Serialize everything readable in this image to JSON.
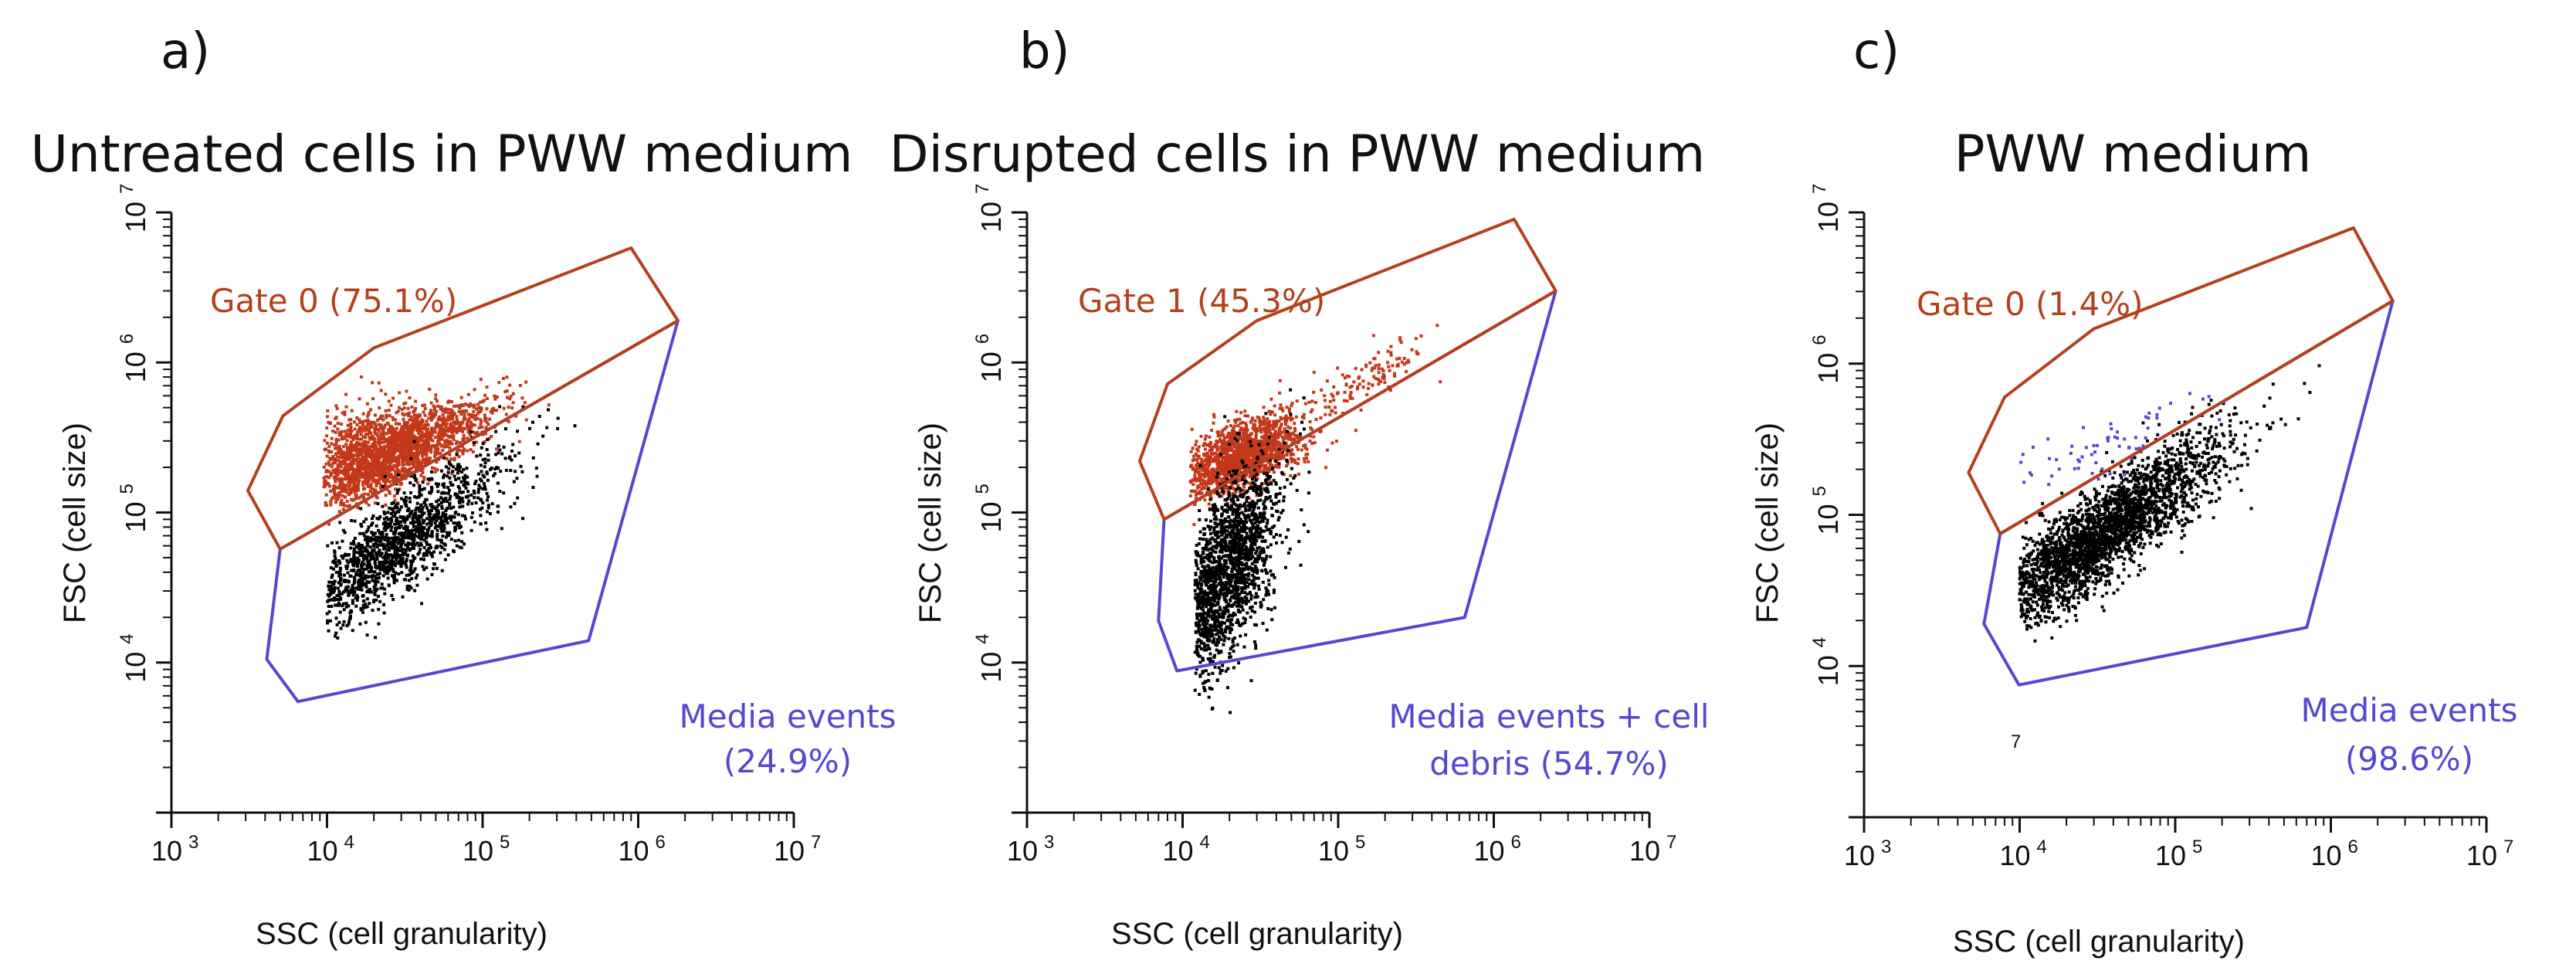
{
  "colors": {
    "gate": "#b5401c",
    "gate_points": "#c4381a",
    "media": "#5548d0",
    "events": "#000000"
  },
  "chart_data": [
    {
      "type": "scatter",
      "panel": "a)",
      "title": "Untreated cells in PWW medium",
      "xlabel": "SSC (cell granularity)",
      "ylabel": "FSC (cell size)",
      "xscale": "log",
      "yscale": "log",
      "xlim": [
        1000,
        10000000
      ],
      "ylim": [
        1000,
        10000000
      ],
      "x_ticks": [
        {
          "base": "10",
          "exp": "3"
        },
        {
          "base": "10",
          "exp": "4"
        },
        {
          "base": "10",
          "exp": "5"
        },
        {
          "base": "10",
          "exp": "6"
        },
        {
          "base": "10",
          "exp": "7"
        }
      ],
      "y_ticks": [
        {
          "base": "10",
          "exp": "4"
        },
        {
          "base": "10",
          "exp": "5"
        },
        {
          "base": "10",
          "exp": "6"
        },
        {
          "base": "10",
          "exp": "7"
        }
      ],
      "gate": {
        "label": "Gate 0 (75.1%)",
        "percent": 75.1,
        "polygon": [
          [
            1800000,
            1900000
          ],
          [
            900000,
            5800000
          ],
          [
            20000,
            1250000
          ],
          [
            5200,
            440000
          ],
          [
            3100,
            140000
          ],
          [
            5000,
            57000
          ]
        ]
      },
      "media": {
        "label_lines": [
          "Media events",
          "(24.9%)"
        ],
        "percent": 24.9,
        "polygon": [
          [
            1800000,
            1900000
          ],
          [
            5000,
            57000
          ],
          [
            4100,
            10500
          ],
          [
            6500,
            5500
          ],
          [
            480000,
            14000
          ]
        ]
      },
      "clusters": [
        {
          "color": "gate_points",
          "n": 1600,
          "log_center": [
            4.45,
            5.4
          ],
          "sd_major": 0.33,
          "sd_minor": 0.1,
          "angle_deg": 26,
          "log_xmin": 3.98,
          "log_xmax": 5.6
        },
        {
          "color": "gate_points",
          "n": 500,
          "log_center": [
            4.3,
            5.45
          ],
          "sd_major": 0.2,
          "sd_minor": 0.14,
          "angle_deg": 20,
          "log_xmin": 3.98,
          "log_xmax": 5.6
        },
        {
          "color": "events",
          "n": 1400,
          "log_center": [
            4.4,
            4.75
          ],
          "sd_major": 0.45,
          "sd_minor": 0.13,
          "angle_deg": 40,
          "log_xmin": 4.0,
          "log_xmax": 6.1
        }
      ]
    },
    {
      "type": "scatter",
      "panel": "b)",
      "title": "Disrupted cells in PWW medium",
      "xlabel": "SSC (cell granularity)",
      "ylabel": "FSC (cell size)",
      "xscale": "log",
      "yscale": "log",
      "xlim": [
        1000,
        10000000
      ],
      "ylim": [
        1000,
        10000000
      ],
      "x_ticks": [
        {
          "base": "10",
          "exp": "3"
        },
        {
          "base": "10",
          "exp": "4"
        },
        {
          "base": "10",
          "exp": "5"
        },
        {
          "base": "10",
          "exp": "6"
        },
        {
          "base": "10",
          "exp": "7"
        }
      ],
      "y_ticks": [
        {
          "base": "10",
          "exp": "4"
        },
        {
          "base": "10",
          "exp": "5"
        },
        {
          "base": "10",
          "exp": "6"
        },
        {
          "base": "10",
          "exp": "7"
        }
      ],
      "gate": {
        "label": "Gate 1 (45.3%)",
        "percent": 45.3,
        "polygon": [
          [
            2500000,
            3000000
          ],
          [
            1350000,
            9000000
          ],
          [
            30000,
            1900000
          ],
          [
            8000,
            720000
          ],
          [
            5300,
            220000
          ],
          [
            7600,
            90000
          ]
        ]
      },
      "media": {
        "label_lines": [
          "Media events + cell",
          "debris (54.7%)"
        ],
        "percent": 54.7,
        "polygon": [
          [
            2500000,
            3000000
          ],
          [
            7600,
            90000
          ],
          [
            7000,
            19000
          ],
          [
            9200,
            8800
          ],
          [
            650000,
            20000
          ]
        ]
      },
      "clusters": [
        {
          "color": "gate_points",
          "n": 1400,
          "log_center": [
            4.38,
            5.38
          ],
          "sd_major": 0.2,
          "sd_minor": 0.1,
          "angle_deg": 28,
          "log_xmin": 4.05,
          "log_xmax": 6.4
        },
        {
          "color": "gate_points",
          "n": 120,
          "log_center": [
            5.2,
            5.9
          ],
          "sd_major": 0.25,
          "sd_minor": 0.08,
          "angle_deg": 35,
          "log_xmin": 4.05,
          "log_xmax": 6.4
        },
        {
          "color": "events",
          "n": 1700,
          "log_center": [
            4.28,
            4.62
          ],
          "sd_major": 0.38,
          "sd_minor": 0.13,
          "angle_deg": 72,
          "log_xmin": 4.08,
          "log_xmax": 6.2
        }
      ]
    },
    {
      "type": "scatter",
      "panel": "c)",
      "title": "PWW medium",
      "xlabel": "SSC (cell granularity)",
      "ylabel": "FSC (cell size)",
      "xscale": "log",
      "yscale": "log",
      "xlim": [
        1000,
        10000000
      ],
      "ylim": [
        1000,
        10000000
      ],
      "x_ticks": [
        {
          "base": "10",
          "exp": "3"
        },
        {
          "base": "10",
          "exp": "4"
        },
        {
          "base": "10",
          "exp": "5"
        },
        {
          "base": "10",
          "exp": "6"
        },
        {
          "base": "10",
          "exp": "7"
        }
      ],
      "y_ticks": [
        {
          "base": "10",
          "exp": "4"
        },
        {
          "base": "10",
          "exp": "5"
        },
        {
          "base": "10",
          "exp": "6"
        },
        {
          "base": "10",
          "exp": "7"
        }
      ],
      "gate": {
        "label": "Gate 0 (1.4%)",
        "percent": 1.4,
        "polygon": [
          [
            2500000,
            2600000
          ],
          [
            1400000,
            7900000
          ],
          [
            30000,
            1700000
          ],
          [
            8000,
            600000
          ],
          [
            4700,
            190000
          ],
          [
            7500,
            75000
          ]
        ]
      },
      "media": {
        "label_lines": [
          "Media events",
          "(98.6%)"
        ],
        "percent": 98.6,
        "polygon": [
          [
            2500000,
            2600000
          ],
          [
            7500,
            75000
          ],
          [
            5900,
            19000
          ],
          [
            9900,
            7500
          ],
          [
            700000,
            18000
          ]
        ]
      },
      "stray_label": "7",
      "clusters": [
        {
          "color": "events",
          "n": 2600,
          "log_center": [
            4.5,
            4.85
          ],
          "sd_major": 0.5,
          "sd_minor": 0.13,
          "angle_deg": 38,
          "log_xmin": 4.0,
          "log_xmax": 6.15
        },
        {
          "color": "media",
          "n": 60,
          "log_center": [
            4.55,
            5.45
          ],
          "sd_major": 0.35,
          "sd_minor": 0.08,
          "angle_deg": 20,
          "log_xmin": 4.0,
          "log_xmax": 6.1
        }
      ]
    }
  ]
}
